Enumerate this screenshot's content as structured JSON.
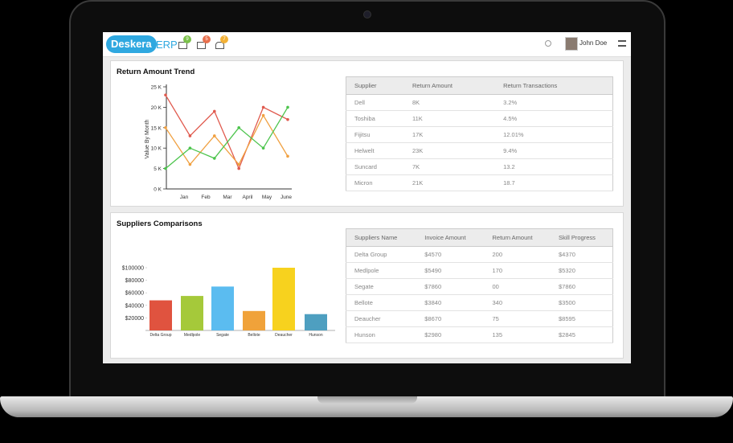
{
  "header": {
    "brand": "Deskera",
    "product": "ERP",
    "badges": [
      9,
      5,
      7
    ],
    "user": "John Doe"
  },
  "trend_panel": {
    "title": "Return Amount Trend",
    "chart": {
      "type": "line",
      "y_label": "Value By Month",
      "categories": [
        "Jan",
        "Feb",
        "Mar",
        "April",
        "May",
        "June"
      ],
      "ylim": [
        0,
        25
      ],
      "yticks": [
        {
          "value": 0,
          "label": "0 K"
        },
        {
          "value": 5,
          "label": "5 K"
        },
        {
          "value": 10,
          "label": "10 K"
        },
        {
          "value": 15,
          "label": "15 K"
        },
        {
          "value": 20,
          "label": "20 K"
        },
        {
          "value": 25,
          "label": "25 K"
        }
      ],
      "series": [
        {
          "color": "#e05a4e",
          "values": [
            23,
            13,
            19,
            5,
            20,
            17
          ]
        },
        {
          "color": "#f0a040",
          "values": [
            15,
            6,
            13,
            6,
            18,
            8
          ]
        },
        {
          "color": "#4cc44c",
          "values": [
            5,
            10,
            7.5,
            15,
            10,
            20
          ]
        }
      ]
    },
    "table": {
      "headers": [
        "Supplier",
        "Return Amount",
        "Return Transactions"
      ],
      "rows": [
        [
          "Dell",
          "8K",
          "3.2%"
        ],
        [
          "Toshiba",
          "11K",
          "4.5%"
        ],
        [
          "Fijitsu",
          "17K",
          "12.01%"
        ],
        [
          "Helwelt",
          "23K",
          "9.4%"
        ],
        [
          "Suncard",
          "7K",
          "13.2"
        ],
        [
          "Micron",
          "21K",
          "18.7"
        ]
      ]
    }
  },
  "suppliers_panel": {
    "title": "Suppliers Comparisons",
    "chart": {
      "type": "bar",
      "categories": [
        "Delta Group",
        "Medlpole",
        "Segate",
        "Bellote",
        "Deaucher",
        "Hunson"
      ],
      "values": [
        48000,
        55000,
        70000,
        31000,
        100000,
        26000
      ],
      "colors": [
        "#e0533f",
        "#a5c93a",
        "#5bbcf0",
        "#f0a23a",
        "#f7d21e",
        "#4e9fc0"
      ],
      "ylim": [
        0,
        110000
      ],
      "yticks": [
        {
          "value": 20000,
          "label": "$20000"
        },
        {
          "value": 40000,
          "label": "$40000"
        },
        {
          "value": 60000,
          "label": "$60000"
        },
        {
          "value": 80000,
          "label": "$80000"
        },
        {
          "value": 100000,
          "label": "$100000"
        }
      ]
    },
    "table": {
      "headers": [
        "Suppliers Name",
        "Invoice Amount",
        "Return Amount",
        "Skill Progress"
      ],
      "rows": [
        [
          "Delta Group",
          "$4570",
          "200",
          "$4370"
        ],
        [
          "Medlpole",
          "$5490",
          "170",
          "$5320"
        ],
        [
          "Segate",
          "$7860",
          "00",
          "$7860"
        ],
        [
          "Bellote",
          "$3840",
          "340",
          "$3500"
        ],
        [
          "Deaucher",
          "$8670",
          "75",
          "$8595"
        ],
        [
          "Hunson",
          "$2980",
          "135",
          "$2845"
        ]
      ]
    }
  }
}
